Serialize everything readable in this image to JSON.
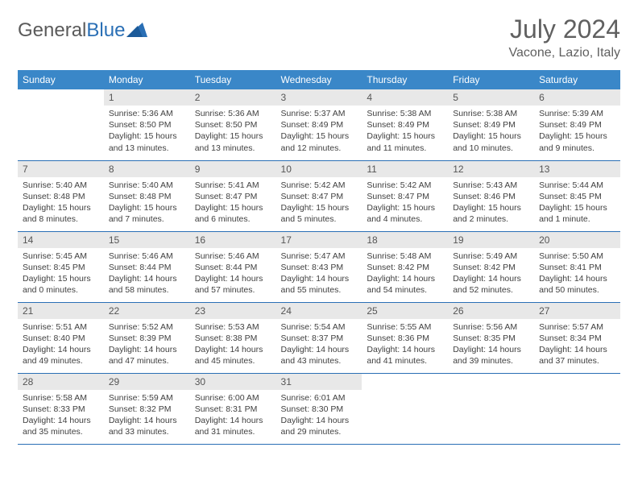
{
  "logo": {
    "general": "General",
    "blue": "Blue"
  },
  "title": "July 2024",
  "location": "Vacone, Lazio, Italy",
  "colors": {
    "header_bg": "#3a87c8",
    "header_text": "#ffffff",
    "border": "#2a6fb5",
    "daynum_bg": "#e8e8e8",
    "body_text": "#404040",
    "title_text": "#606060",
    "logo_gray": "#5a5a5a",
    "logo_blue": "#2a6fb5"
  },
  "weekdays": [
    "Sunday",
    "Monday",
    "Tuesday",
    "Wednesday",
    "Thursday",
    "Friday",
    "Saturday"
  ],
  "weeks": [
    [
      {
        "n": "",
        "sr": "",
        "ss": "",
        "dl1": "",
        "dl2": ""
      },
      {
        "n": "1",
        "sr": "Sunrise: 5:36 AM",
        "ss": "Sunset: 8:50 PM",
        "dl1": "Daylight: 15 hours",
        "dl2": "and 13 minutes."
      },
      {
        "n": "2",
        "sr": "Sunrise: 5:36 AM",
        "ss": "Sunset: 8:50 PM",
        "dl1": "Daylight: 15 hours",
        "dl2": "and 13 minutes."
      },
      {
        "n": "3",
        "sr": "Sunrise: 5:37 AM",
        "ss": "Sunset: 8:49 PM",
        "dl1": "Daylight: 15 hours",
        "dl2": "and 12 minutes."
      },
      {
        "n": "4",
        "sr": "Sunrise: 5:38 AM",
        "ss": "Sunset: 8:49 PM",
        "dl1": "Daylight: 15 hours",
        "dl2": "and 11 minutes."
      },
      {
        "n": "5",
        "sr": "Sunrise: 5:38 AM",
        "ss": "Sunset: 8:49 PM",
        "dl1": "Daylight: 15 hours",
        "dl2": "and 10 minutes."
      },
      {
        "n": "6",
        "sr": "Sunrise: 5:39 AM",
        "ss": "Sunset: 8:49 PM",
        "dl1": "Daylight: 15 hours",
        "dl2": "and 9 minutes."
      }
    ],
    [
      {
        "n": "7",
        "sr": "Sunrise: 5:40 AM",
        "ss": "Sunset: 8:48 PM",
        "dl1": "Daylight: 15 hours",
        "dl2": "and 8 minutes."
      },
      {
        "n": "8",
        "sr": "Sunrise: 5:40 AM",
        "ss": "Sunset: 8:48 PM",
        "dl1": "Daylight: 15 hours",
        "dl2": "and 7 minutes."
      },
      {
        "n": "9",
        "sr": "Sunrise: 5:41 AM",
        "ss": "Sunset: 8:47 PM",
        "dl1": "Daylight: 15 hours",
        "dl2": "and 6 minutes."
      },
      {
        "n": "10",
        "sr": "Sunrise: 5:42 AM",
        "ss": "Sunset: 8:47 PM",
        "dl1": "Daylight: 15 hours",
        "dl2": "and 5 minutes."
      },
      {
        "n": "11",
        "sr": "Sunrise: 5:42 AM",
        "ss": "Sunset: 8:47 PM",
        "dl1": "Daylight: 15 hours",
        "dl2": "and 4 minutes."
      },
      {
        "n": "12",
        "sr": "Sunrise: 5:43 AM",
        "ss": "Sunset: 8:46 PM",
        "dl1": "Daylight: 15 hours",
        "dl2": "and 2 minutes."
      },
      {
        "n": "13",
        "sr": "Sunrise: 5:44 AM",
        "ss": "Sunset: 8:45 PM",
        "dl1": "Daylight: 15 hours",
        "dl2": "and 1 minute."
      }
    ],
    [
      {
        "n": "14",
        "sr": "Sunrise: 5:45 AM",
        "ss": "Sunset: 8:45 PM",
        "dl1": "Daylight: 15 hours",
        "dl2": "and 0 minutes."
      },
      {
        "n": "15",
        "sr": "Sunrise: 5:46 AM",
        "ss": "Sunset: 8:44 PM",
        "dl1": "Daylight: 14 hours",
        "dl2": "and 58 minutes."
      },
      {
        "n": "16",
        "sr": "Sunrise: 5:46 AM",
        "ss": "Sunset: 8:44 PM",
        "dl1": "Daylight: 14 hours",
        "dl2": "and 57 minutes."
      },
      {
        "n": "17",
        "sr": "Sunrise: 5:47 AM",
        "ss": "Sunset: 8:43 PM",
        "dl1": "Daylight: 14 hours",
        "dl2": "and 55 minutes."
      },
      {
        "n": "18",
        "sr": "Sunrise: 5:48 AM",
        "ss": "Sunset: 8:42 PM",
        "dl1": "Daylight: 14 hours",
        "dl2": "and 54 minutes."
      },
      {
        "n": "19",
        "sr": "Sunrise: 5:49 AM",
        "ss": "Sunset: 8:42 PM",
        "dl1": "Daylight: 14 hours",
        "dl2": "and 52 minutes."
      },
      {
        "n": "20",
        "sr": "Sunrise: 5:50 AM",
        "ss": "Sunset: 8:41 PM",
        "dl1": "Daylight: 14 hours",
        "dl2": "and 50 minutes."
      }
    ],
    [
      {
        "n": "21",
        "sr": "Sunrise: 5:51 AM",
        "ss": "Sunset: 8:40 PM",
        "dl1": "Daylight: 14 hours",
        "dl2": "and 49 minutes."
      },
      {
        "n": "22",
        "sr": "Sunrise: 5:52 AM",
        "ss": "Sunset: 8:39 PM",
        "dl1": "Daylight: 14 hours",
        "dl2": "and 47 minutes."
      },
      {
        "n": "23",
        "sr": "Sunrise: 5:53 AM",
        "ss": "Sunset: 8:38 PM",
        "dl1": "Daylight: 14 hours",
        "dl2": "and 45 minutes."
      },
      {
        "n": "24",
        "sr": "Sunrise: 5:54 AM",
        "ss": "Sunset: 8:37 PM",
        "dl1": "Daylight: 14 hours",
        "dl2": "and 43 minutes."
      },
      {
        "n": "25",
        "sr": "Sunrise: 5:55 AM",
        "ss": "Sunset: 8:36 PM",
        "dl1": "Daylight: 14 hours",
        "dl2": "and 41 minutes."
      },
      {
        "n": "26",
        "sr": "Sunrise: 5:56 AM",
        "ss": "Sunset: 8:35 PM",
        "dl1": "Daylight: 14 hours",
        "dl2": "and 39 minutes."
      },
      {
        "n": "27",
        "sr": "Sunrise: 5:57 AM",
        "ss": "Sunset: 8:34 PM",
        "dl1": "Daylight: 14 hours",
        "dl2": "and 37 minutes."
      }
    ],
    [
      {
        "n": "28",
        "sr": "Sunrise: 5:58 AM",
        "ss": "Sunset: 8:33 PM",
        "dl1": "Daylight: 14 hours",
        "dl2": "and 35 minutes."
      },
      {
        "n": "29",
        "sr": "Sunrise: 5:59 AM",
        "ss": "Sunset: 8:32 PM",
        "dl1": "Daylight: 14 hours",
        "dl2": "and 33 minutes."
      },
      {
        "n": "30",
        "sr": "Sunrise: 6:00 AM",
        "ss": "Sunset: 8:31 PM",
        "dl1": "Daylight: 14 hours",
        "dl2": "and 31 minutes."
      },
      {
        "n": "31",
        "sr": "Sunrise: 6:01 AM",
        "ss": "Sunset: 8:30 PM",
        "dl1": "Daylight: 14 hours",
        "dl2": "and 29 minutes."
      },
      {
        "n": "",
        "sr": "",
        "ss": "",
        "dl1": "",
        "dl2": ""
      },
      {
        "n": "",
        "sr": "",
        "ss": "",
        "dl1": "",
        "dl2": ""
      },
      {
        "n": "",
        "sr": "",
        "ss": "",
        "dl1": "",
        "dl2": ""
      }
    ]
  ]
}
